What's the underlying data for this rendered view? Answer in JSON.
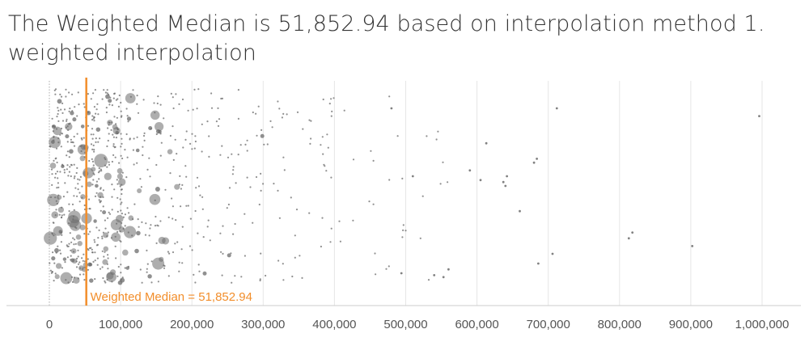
{
  "title": {
    "line1": "The Weighted Median is 51,852.94 based on interpolation method 1.",
    "line2": "weighted interpolation"
  },
  "colors": {
    "median": "#f28e2b",
    "points": "#6b6b6b",
    "grid": "#e6e6e6",
    "axis": "#cccccc",
    "text": "#333333"
  },
  "chart_data": {
    "type": "scatter",
    "title": "The Weighted Median is 51,852.94 based on interpolation method 1. weighted interpolation",
    "xlabel": "",
    "ylabel": "",
    "xlim": [
      0,
      1000000
    ],
    "x_ticks": [
      0,
      100000,
      200000,
      300000,
      400000,
      500000,
      600000,
      700000,
      800000,
      900000,
      1000000
    ],
    "x_tick_labels": [
      "0",
      "100,000",
      "200,000",
      "300,000",
      "400,000",
      "500,000",
      "600,000",
      "700,000",
      "800,000",
      "900,000",
      "1,000,000"
    ],
    "grid": "vertical",
    "jitter": "random vertical jitter (no y axis)",
    "reference_line": {
      "value": 51852.94,
      "label": "Weighted Median = 51,852.94"
    },
    "notable_points": [
      {
        "x": 712000,
        "y": 0.1
      },
      {
        "x": 996000,
        "y": 0.14
      },
      {
        "x": 613000,
        "y": 0.28
      },
      {
        "x": 680000,
        "y": 0.38
      },
      {
        "x": 684000,
        "y": 0.36
      },
      {
        "x": 605000,
        "y": 0.47
      },
      {
        "x": 637000,
        "y": 0.48
      },
      {
        "x": 642000,
        "y": 0.45
      },
      {
        "x": 640000,
        "y": 0.5
      },
      {
        "x": 660000,
        "y": 0.63
      },
      {
        "x": 818000,
        "y": 0.74
      },
      {
        "x": 813000,
        "y": 0.77
      },
      {
        "x": 902000,
        "y": 0.81
      },
      {
        "x": 706000,
        "y": 0.85
      },
      {
        "x": 686000,
        "y": 0.9
      },
      {
        "x": 553000,
        "y": 0.97
      },
      {
        "x": 540000,
        "y": 0.96
      },
      {
        "x": 560000,
        "y": 0.93
      },
      {
        "x": 494000,
        "y": 0.95
      },
      {
        "x": 480000,
        "y": 0.1
      },
      {
        "x": 510000,
        "y": 0.45
      },
      {
        "x": 590000,
        "y": 0.42
      }
    ],
    "cluster_summary": {
      "dense_range": [
        0,
        200000
      ],
      "sparse_range": [
        200000,
        560000
      ],
      "approx_point_count": 900
    }
  }
}
